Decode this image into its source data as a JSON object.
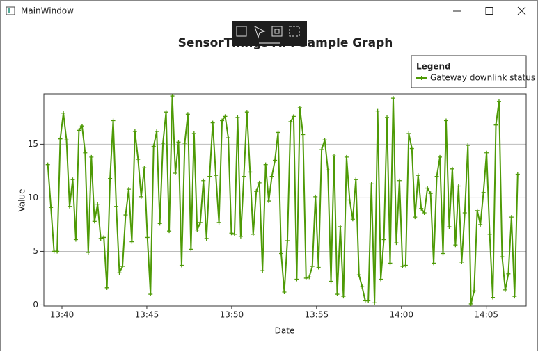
{
  "window": {
    "title": "MainWindow"
  },
  "chart_data": {
    "type": "line",
    "title": "SensorThings API Sample Graph",
    "x_label": "Date",
    "y_label": "Value",
    "legend_title": "Legend",
    "legend_position": "top-right",
    "grid": true,
    "xlim": [
      "13:38:56",
      "14:07:21"
    ],
    "xticks": [
      "13:40",
      "13:45",
      "13:50",
      "13:55",
      "14:00",
      "14:05"
    ],
    "ylim": [
      -0.1,
      19.7
    ],
    "yticks": [
      0,
      5,
      10,
      15
    ],
    "x": [
      "13:39:10",
      "13:39:21",
      "13:39:32",
      "13:39:43",
      "13:39:54",
      "13:40:05",
      "13:40:16",
      "13:40:27",
      "13:40:38",
      "13:40:49",
      "13:41:00",
      "13:41:11",
      "13:41:22",
      "13:41:33",
      "13:41:44",
      "13:41:55",
      "13:42:06",
      "13:42:17",
      "13:42:28",
      "13:42:39",
      "13:42:50",
      "13:43:01",
      "13:43:12",
      "13:43:23",
      "13:43:34",
      "13:43:45",
      "13:43:56",
      "13:44:07",
      "13:44:18",
      "13:44:29",
      "13:44:40",
      "13:44:51",
      "13:45:02",
      "13:45:13",
      "13:45:24",
      "13:45:35",
      "13:45:46",
      "13:45:57",
      "13:46:08",
      "13:46:19",
      "13:46:30",
      "13:46:41",
      "13:46:52",
      "13:47:03",
      "13:47:14",
      "13:47:25",
      "13:47:36",
      "13:47:47",
      "13:47:58",
      "13:48:09",
      "13:48:20",
      "13:48:31",
      "13:48:42",
      "13:48:53",
      "13:49:04",
      "13:49:15",
      "13:49:26",
      "13:49:37",
      "13:49:48",
      "13:49:59",
      "13:50:10",
      "13:50:21",
      "13:50:32",
      "13:50:43",
      "13:50:54",
      "13:51:05",
      "13:51:16",
      "13:51:27",
      "13:51:38",
      "13:51:49",
      "13:52:00",
      "13:52:11",
      "13:52:22",
      "13:52:33",
      "13:52:44",
      "13:52:55",
      "13:53:06",
      "13:53:17",
      "13:53:28",
      "13:53:39",
      "13:53:50",
      "13:54:01",
      "13:54:12",
      "13:54:23",
      "13:54:34",
      "13:54:45",
      "13:54:56",
      "13:55:07",
      "13:55:18",
      "13:55:29",
      "13:55:40",
      "13:55:51",
      "13:56:02",
      "13:56:13",
      "13:56:24",
      "13:56:35",
      "13:56:46",
      "13:56:57",
      "13:57:08",
      "13:57:19",
      "13:57:30",
      "13:57:41",
      "13:57:52",
      "13:58:03",
      "13:58:14",
      "13:58:25",
      "13:58:36",
      "13:58:47",
      "13:58:58",
      "13:59:09",
      "13:59:20",
      "13:59:31",
      "13:59:42",
      "13:59:53",
      "14:00:04",
      "14:00:15",
      "14:00:26",
      "14:00:37",
      "14:00:48",
      "14:00:59",
      "14:01:10",
      "14:01:21",
      "14:01:32",
      "14:01:43",
      "14:01:54",
      "14:02:05",
      "14:02:16",
      "14:02:27",
      "14:02:38",
      "14:02:49",
      "14:03:00",
      "14:03:11",
      "14:03:22",
      "14:03:33",
      "14:03:44",
      "14:03:55",
      "14:04:06",
      "14:04:17",
      "14:04:28",
      "14:04:39",
      "14:04:50",
      "14:05:01",
      "14:05:12",
      "14:05:23",
      "14:05:34",
      "14:05:45",
      "14:05:56",
      "14:06:07",
      "14:06:18",
      "14:06:29",
      "14:06:40",
      "14:06:51"
    ],
    "series": [
      {
        "name": "Gateway downlink status",
        "color": "#4e9a06",
        "values": [
          13.1,
          9.1,
          5.0,
          5.0,
          15.5,
          17.9,
          15.4,
          9.2,
          11.7,
          6.1,
          16.3,
          16.7,
          14.2,
          4.9,
          13.8,
          7.8,
          9.4,
          6.2,
          6.3,
          1.6,
          11.8,
          17.2,
          9.2,
          3.0,
          3.6,
          8.4,
          10.8,
          5.9,
          16.2,
          13.6,
          10.1,
          12.8,
          6.3,
          1.0,
          14.8,
          16.2,
          7.6,
          15.1,
          18.0,
          6.9,
          19.5,
          12.3,
          15.2,
          3.7,
          15.1,
          17.8,
          5.2,
          16.0,
          7.0,
          7.7,
          11.6,
          6.2,
          12.0,
          17.0,
          12.1,
          7.7,
          17.2,
          17.6,
          15.6,
          6.7,
          6.6,
          17.5,
          6.4,
          12.0,
          18.0,
          12.4,
          6.6,
          10.6,
          11.4,
          3.2,
          13.1,
          9.7,
          12.0,
          13.5,
          16.1,
          4.8,
          1.2,
          6.0,
          17.1,
          17.6,
          2.4,
          18.4,
          15.9,
          2.5,
          2.6,
          3.6,
          10.1,
          3.5,
          14.5,
          15.4,
          12.6,
          2.2,
          13.9,
          1.0,
          7.3,
          0.8,
          13.8,
          9.8,
          8.0,
          11.7,
          2.8,
          1.7,
          0.4,
          0.4,
          11.3,
          0.2,
          18.1,
          2.4,
          6.1,
          17.5,
          3.9,
          19.3,
          5.8,
          11.6,
          3.6,
          3.7,
          16.0,
          14.6,
          8.2,
          12.1,
          9.0,
          8.6,
          10.9,
          10.4,
          3.9,
          12.0,
          13.8,
          4.8,
          17.2,
          7.3,
          12.7,
          5.6,
          11.1,
          4.0,
          8.6,
          14.9,
          0.1,
          1.3,
          8.8,
          7.5,
          10.5,
          14.2,
          6.6,
          0.7,
          16.8,
          19.0,
          4.5,
          1.4,
          2.9,
          8.2,
          0.8,
          12.2
        ]
      }
    ]
  }
}
